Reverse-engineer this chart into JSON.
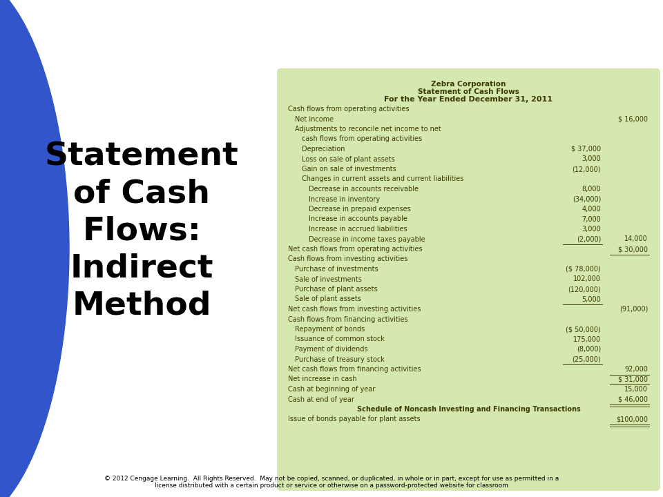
{
  "title1": "Zebra Corporation",
  "title2": "Statement of Cash Flows",
  "title3": "For the Year Ended December 31, 2011",
  "left_title": "Statement\nof Cash\nFlows:\nIndirect\nMethod",
  "bg_color": "#ffffff",
  "table_bg": "#d4e8b0",
  "blue_color": "#3355cc",
  "text_color": "#3a3a00",
  "footer_line1": "© 2012 Cengage Learning.  All Rights Reserved.  May not be copied, scanned, or duplicated, in whole or in part, except for use as permitted in a",
  "footer_line2": "license distributed with a certain product or service or otherwise on a password-protected website for classroom",
  "rows": [
    {
      "indent": 0,
      "label": "Cash flows from operating activities",
      "col1": "",
      "col2": "",
      "bold": false
    },
    {
      "indent": 1,
      "label": "Net income",
      "col1": "",
      "col2": "$ 16,000",
      "bold": false
    },
    {
      "indent": 1,
      "label": "Adjustments to reconcile net income to net",
      "col1": "",
      "col2": "",
      "bold": false
    },
    {
      "indent": 2,
      "label": "cash flows from operating activities",
      "col1": "",
      "col2": "",
      "bold": false
    },
    {
      "indent": 2,
      "label": "Depreciation",
      "col1": "$ 37,000",
      "col2": "",
      "bold": false
    },
    {
      "indent": 2,
      "label": "Loss on sale of plant assets",
      "col1": "3,000",
      "col2": "",
      "bold": false
    },
    {
      "indent": 2,
      "label": "Gain on sale of investments",
      "col1": "(12,000)",
      "col2": "",
      "bold": false
    },
    {
      "indent": 2,
      "label": "Changes in current assets and current liabilities",
      "col1": "",
      "col2": "",
      "bold": false
    },
    {
      "indent": 3,
      "label": "Decrease in accounts receivable",
      "col1": "8,000",
      "col2": "",
      "bold": false
    },
    {
      "indent": 3,
      "label": "Increase in inventory",
      "col1": "(34,000)",
      "col2": "",
      "bold": false
    },
    {
      "indent": 3,
      "label": "Decrease in prepaid expenses",
      "col1": "4,000",
      "col2": "",
      "bold": false
    },
    {
      "indent": 3,
      "label": "Increase in accounts payable",
      "col1": "7,000",
      "col2": "",
      "bold": false
    },
    {
      "indent": 3,
      "label": "Increase in accrued liabilities",
      "col1": "3,000",
      "col2": "",
      "bold": false
    },
    {
      "indent": 3,
      "label": "Decrease in income taxes payable",
      "col1": "(2,000)",
      "col2": "14,000",
      "bold": false,
      "underline_col1": true
    },
    {
      "indent": 0,
      "label": "Net cash flows from operating activities",
      "col1": "",
      "col2": "$ 30,000",
      "bold": false,
      "underline_col2": true
    },
    {
      "indent": 0,
      "label": "Cash flows from investing activities",
      "col1": "",
      "col2": "",
      "bold": false
    },
    {
      "indent": 1,
      "label": "Purchase of investments",
      "col1": "($ 78,000)",
      "col2": "",
      "bold": false
    },
    {
      "indent": 1,
      "label": "Sale of investments",
      "col1": "102,000",
      "col2": "",
      "bold": false
    },
    {
      "indent": 1,
      "label": "Purchase of plant assets",
      "col1": "(120,000)",
      "col2": "",
      "bold": false
    },
    {
      "indent": 1,
      "label": "Sale of plant assets",
      "col1": "5,000",
      "col2": "",
      "bold": false,
      "underline_col1": true
    },
    {
      "indent": 0,
      "label": "Net cash flows from investing activities",
      "col1": "",
      "col2": "(91,000)",
      "bold": false
    },
    {
      "indent": 0,
      "label": "Cash flows from financing activities",
      "col1": "",
      "col2": "",
      "bold": false
    },
    {
      "indent": 1,
      "label": "Repayment of bonds",
      "col1": "($ 50,000)",
      "col2": "",
      "bold": false
    },
    {
      "indent": 1,
      "label": "Issuance of common stock",
      "col1": "175,000",
      "col2": "",
      "bold": false
    },
    {
      "indent": 1,
      "label": "Payment of dividends",
      "col1": "(8,000)",
      "col2": "",
      "bold": false
    },
    {
      "indent": 1,
      "label": "Purchase of treasury stock",
      "col1": "(25,000)",
      "col2": "",
      "bold": false,
      "underline_col1": true
    },
    {
      "indent": 0,
      "label": "Net cash flows from financing activities",
      "col1": "",
      "col2": "92,000",
      "bold": false,
      "underline_col2": true
    },
    {
      "indent": 0,
      "label": "Net increase in cash",
      "col1": "",
      "col2": "$ 31,000",
      "bold": false,
      "underline_col2": true
    },
    {
      "indent": 0,
      "label": "Cash at beginning of year",
      "col1": "",
      "col2": "15,000",
      "bold": false
    },
    {
      "indent": 0,
      "label": "Cash at end of year",
      "col1": "",
      "col2": "$ 46,000",
      "bold": false,
      "underline_col2": true,
      "double_underline": true
    },
    {
      "indent": 0,
      "label": "Schedule of Noncash Investing and Financing Transactions",
      "col1": "",
      "col2": "",
      "bold": true,
      "center": true
    },
    {
      "indent": 0,
      "label": "Issue of bonds payable for plant assets",
      "col1": "",
      "col2": "$100,000",
      "bold": false,
      "underline_col2": true,
      "double_underline": true
    }
  ]
}
